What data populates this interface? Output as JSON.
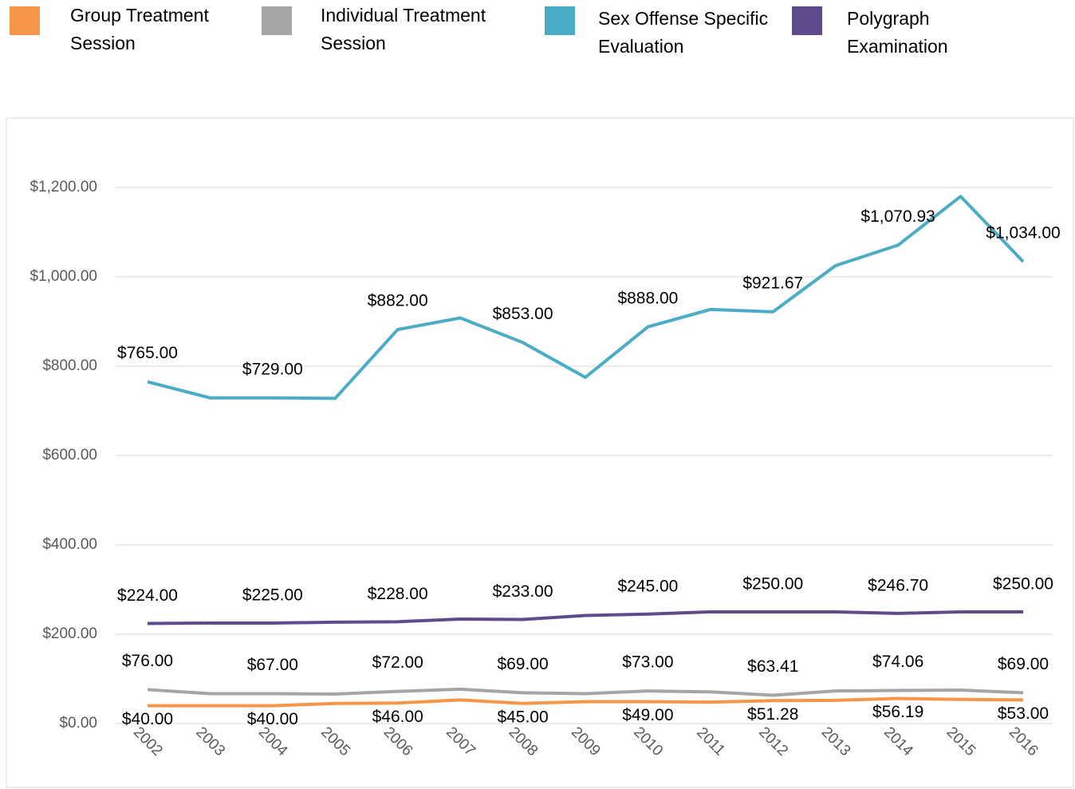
{
  "chart_data": {
    "type": "line",
    "categories": [
      "2002",
      "2003",
      "2004",
      "2005",
      "2006",
      "2007",
      "2008",
      "2009",
      "2010",
      "2011",
      "2012",
      "2013",
      "2014",
      "2015",
      "2016"
    ],
    "series": [
      {
        "name": "Group Treatment Session",
        "color": "#f79646",
        "values": [
          40,
          40,
          40,
          45,
          46,
          53,
          45,
          49,
          49,
          48,
          51.28,
          52,
          56.19,
          54,
          53
        ],
        "value_labels": [
          "$40.00",
          null,
          "$40.00",
          null,
          "$46.00",
          null,
          "$45.00",
          null,
          "$49.00",
          null,
          "$51.28",
          null,
          "$56.19",
          null,
          "$53.00"
        ]
      },
      {
        "name": "Individual Treatment Session",
        "color": "#a5a5a5",
        "values": [
          76,
          67,
          67,
          66,
          72,
          77,
          69,
          67,
          73,
          71,
          63.41,
          73,
          74.06,
          75,
          69
        ],
        "value_labels": [
          "$76.00",
          null,
          "$67.00",
          null,
          "$72.00",
          null,
          "$69.00",
          null,
          "$73.00",
          null,
          "$63.41",
          null,
          "$74.06",
          null,
          "$69.00"
        ]
      },
      {
        "name": "Sex Offense Specific Evaluation",
        "color": "#4bacc6",
        "values": [
          765,
          729,
          729,
          728,
          882,
          908,
          853,
          775,
          888,
          927,
          921.67,
          1025,
          1070.93,
          1180,
          1034
        ],
        "value_labels": [
          "$765.00",
          null,
          "$729.00",
          null,
          "$882.00",
          null,
          "$853.00",
          null,
          "$888.00",
          null,
          "$921.67",
          null,
          "$1,070.93",
          null,
          "$1,034.00"
        ]
      },
      {
        "name": "Polygraph Examination",
        "color": "#5f4b8b",
        "values": [
          224,
          225,
          225,
          227,
          228,
          234,
          233,
          242,
          245,
          250,
          250,
          250,
          246.7,
          250,
          250
        ],
        "value_labels": [
          "$224.00",
          null,
          "$225.00",
          null,
          "$228.00",
          null,
          "$233.00",
          null,
          "$245.00",
          null,
          "$250.00",
          null,
          "$246.70",
          null,
          "$250.00"
        ]
      }
    ],
    "ylim": [
      0,
      1300
    ],
    "yticks": [
      {
        "value": 0,
        "label": "$0.00"
      },
      {
        "value": 200,
        "label": "$200.00"
      },
      {
        "value": 400,
        "label": "$400.00"
      },
      {
        "value": 600,
        "label": "$600.00"
      },
      {
        "value": 800,
        "label": "$800.00"
      },
      {
        "value": 1000,
        "label": "$1,000.00"
      },
      {
        "value": 1200,
        "label": "$1,200.00"
      }
    ],
    "grid": true,
    "legend": "top"
  }
}
